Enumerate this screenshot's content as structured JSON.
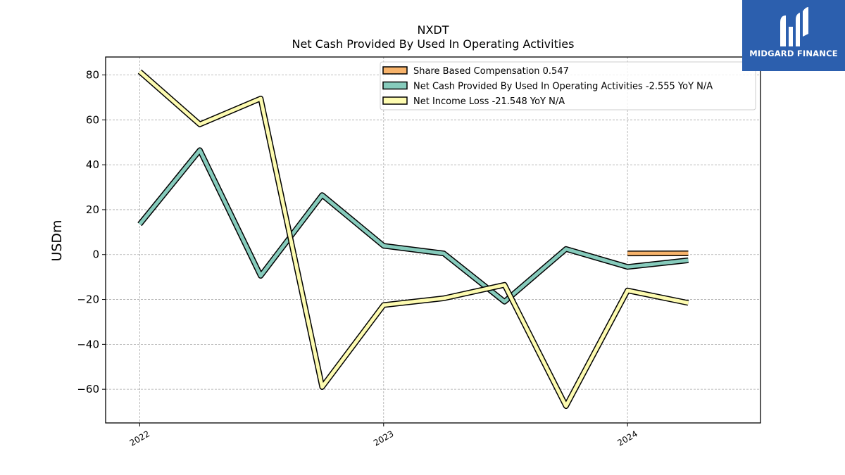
{
  "chart_data": {
    "type": "line",
    "title": "NXDT",
    "subtitle": "Net Cash Provided By Used In Operating Activities",
    "xlabel": "",
    "ylabel": "USDm",
    "x": [
      "2022-01-01",
      "2022-04-01",
      "2022-07-01",
      "2022-10-01",
      "2023-01-01",
      "2023-04-01",
      "2023-07-01",
      "2023-10-01",
      "2024-01-01",
      "2024-04-01"
    ],
    "xticks": [
      "2022",
      "2023",
      "2024"
    ],
    "ylim": [
      -75,
      88
    ],
    "yticks": [
      80,
      60,
      40,
      20,
      0,
      -20,
      -40,
      -60
    ],
    "ytick_labels": [
      "80",
      "60",
      "40",
      "20",
      "0",
      "−20",
      "−40",
      "−60"
    ],
    "grid": true,
    "legend_position": "top-right",
    "series": [
      {
        "name": "Share Based Compensation",
        "legend": "Share Based Compensation  0.547",
        "color": "#f7b36b",
        "x": [
          "2024-01-01",
          "2024-04-01"
        ],
        "values": [
          0.5,
          0.547
        ]
      },
      {
        "name": "Net Cash Provided By Used In Operating Activities",
        "legend": "Net Cash Provided By Used In Operating Activities  -2.555 YoY N/A",
        "color": "#86cbbc",
        "x": [
          "2022-01-01",
          "2022-04-01",
          "2022-07-01",
          "2022-10-01",
          "2023-01-01",
          "2023-04-01",
          "2023-07-01",
          "2023-10-01",
          "2024-01-01",
          "2024-04-01"
        ],
        "values": [
          13.5,
          46.5,
          -9.5,
          26.5,
          3.9,
          0.5,
          -21,
          2.5,
          -5.5,
          -2.555
        ]
      },
      {
        "name": "Net Income Loss",
        "legend": "Net Income Loss  -21.548 YoY N/A",
        "color": "#fdfbb0",
        "x": [
          "2022-01-01",
          "2022-04-01",
          "2022-07-01",
          "2022-10-01",
          "2023-01-01",
          "2023-04-01",
          "2023-07-01",
          "2023-10-01",
          "2024-01-01",
          "2024-04-01"
        ],
        "values": [
          81.5,
          58,
          69.5,
          -59,
          -22.5,
          -19.5,
          -13.5,
          -67.5,
          -16,
          -21.548
        ]
      }
    ]
  },
  "branding": {
    "logo_text": "MIDGARD FINANCE"
  }
}
